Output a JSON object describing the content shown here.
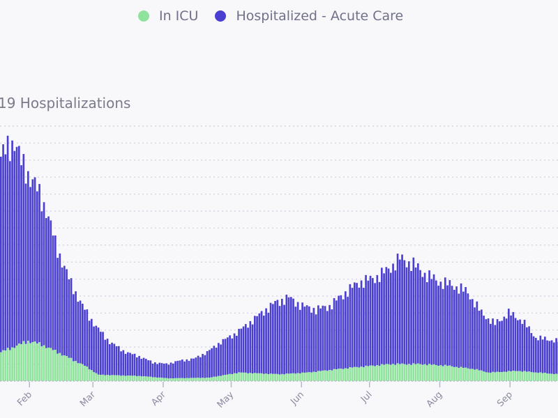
{
  "chart_data": {
    "type": "bar",
    "stacked": true,
    "title": "19 Hospitalizations",
    "xlabel": "",
    "ylabel": "",
    "ylim": [
      0,
      1500
    ],
    "grid": true,
    "legend": {
      "position": "top",
      "entries": [
        "In ICU",
        "Hospitalized - Acute Care"
      ]
    },
    "x_unit": "day index (daily bars)",
    "x_ticks": [
      {
        "label": "Feb",
        "day": 13
      },
      {
        "label": "Mar",
        "day": 41
      },
      {
        "label": "Apr",
        "day": 72
      },
      {
        "label": "May",
        "day": 102
      },
      {
        "label": "Jun",
        "day": 133
      },
      {
        "label": "Jul",
        "day": 163
      },
      {
        "label": "Aug",
        "day": 194
      },
      {
        "label": "Sep",
        "day": 225
      }
    ],
    "total_keypoints": {
      "day": [
        0,
        3,
        6,
        9,
        14,
        20,
        24,
        30,
        36,
        42,
        48,
        55,
        61,
        67,
        73,
        79,
        85,
        91,
        97,
        103,
        109,
        115,
        121,
        127,
        133,
        139,
        145,
        152,
        158,
        164,
        170,
        176,
        182,
        188,
        194,
        200,
        206,
        212,
        218,
        224,
        230,
        236,
        246
      ],
      "value": [
        1320,
        1360,
        1420,
        1280,
        1180,
        1010,
        810,
        600,
        440,
        320,
        230,
        170,
        145,
        110,
        100,
        120,
        130,
        170,
        230,
        275,
        335,
        400,
        460,
        490,
        440,
        420,
        440,
        520,
        580,
        600,
        645,
        720,
        685,
        620,
        580,
        560,
        520,
        400,
        335,
        400,
        355,
        255,
        235
      ]
    },
    "icu_keypoints": {
      "day": [
        0,
        12,
        18,
        28,
        37,
        43,
        61,
        74,
        92,
        105,
        123,
        135,
        154,
        172,
        185,
        197,
        209,
        215,
        228,
        246
      ],
      "value": [
        170,
        235,
        215,
        150,
        90,
        37,
        30,
        16,
        20,
        50,
        40,
        50,
        78,
        100,
        100,
        90,
        70,
        50,
        60,
        40
      ]
    },
    "series": [
      {
        "name": "In ICU",
        "color": "#8fe39c"
      },
      {
        "name": "Hospitalized - Acute Care",
        "color": "#4b3fd1"
      }
    ]
  }
}
